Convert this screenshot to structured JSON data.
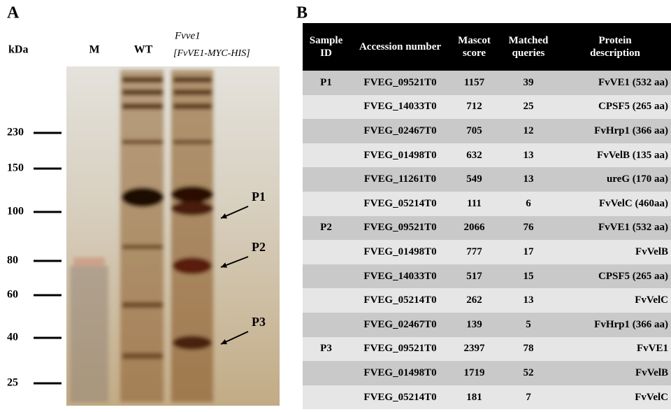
{
  "panel_a": {
    "label": "A",
    "unit": "kDa",
    "lanes": [
      "M",
      "WT"
    ],
    "mutant": "Fvve1",
    "construct": "[FvVE1-MYC-HIS]",
    "markers": [
      "230",
      "150",
      "100",
      "80",
      "60",
      "40",
      "25"
    ],
    "peaks": [
      "P1",
      "P2",
      "P3"
    ]
  },
  "panel_b": {
    "label": "B",
    "table": {
      "header": [
        "Sample ID",
        "Accession number",
        "Mascot score",
        "Matched queries",
        "Protein description"
      ],
      "rows": [
        [
          "P1",
          "FVEG_09521T0",
          "1157",
          "39",
          "FvVE1 (532 aa)"
        ],
        [
          null,
          "FVEG_14033T0",
          "712",
          "25",
          "CPSF5 (265 aa)"
        ],
        [
          null,
          "FVEG_02467T0",
          "705",
          "12",
          "FvHrp1 (366 aa)"
        ],
        [
          null,
          "FVEG_01498T0",
          "632",
          "13",
          "FvVelB (135 aa)"
        ],
        [
          null,
          "FVEG_11261T0",
          "549",
          "13",
          "ureG (170 aa)"
        ],
        [
          null,
          "FVEG_05214T0",
          "111",
          "6",
          "FvVelC (460aa)"
        ],
        [
          "P2",
          "FVEG_09521T0",
          "2066",
          "76",
          "FvVE1 (532 aa)"
        ],
        [
          null,
          "FVEG_01498T0",
          "777",
          "17",
          "FvVelB"
        ],
        [
          null,
          "FVEG_14033T0",
          "517",
          "15",
          "CPSF5 (265 aa)"
        ],
        [
          null,
          "FVEG_05214T0",
          "262",
          "13",
          "FvVelC"
        ],
        [
          null,
          "FVEG_02467T0",
          "139",
          "5",
          "FvHrp1 (366 aa)"
        ],
        [
          "P3",
          "FVEG_09521T0",
          "2397",
          "78",
          "FvVE1"
        ],
        [
          null,
          "FVEG_01498T0",
          "1719",
          "52",
          "FvVelB"
        ],
        [
          null,
          "FVEG_05214T0",
          "181",
          "7",
          "FvVelC"
        ]
      ]
    }
  }
}
